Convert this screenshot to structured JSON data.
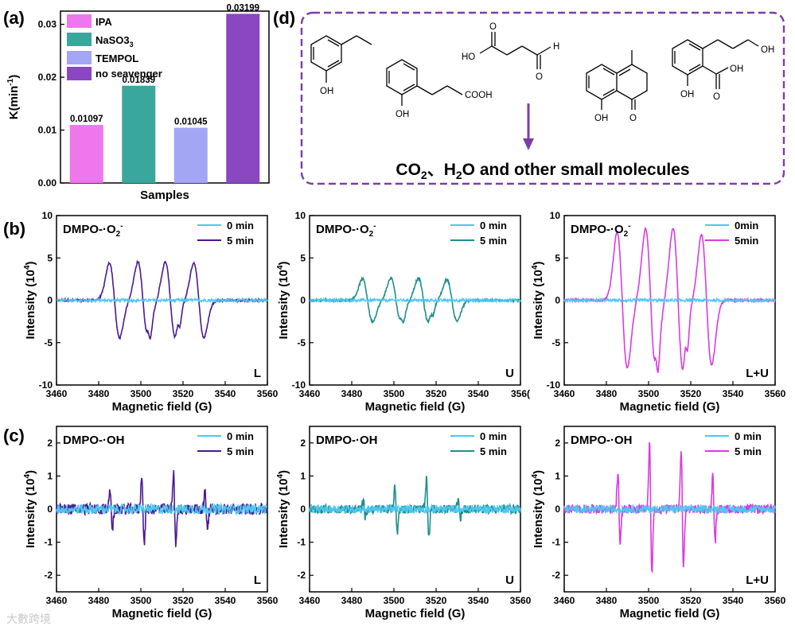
{
  "panel_labels": {
    "a": "(a)",
    "b": "(b)",
    "c": "(c)",
    "d": "(d)"
  },
  "colors": {
    "IPA": "#ee77ee",
    "NaSO3": "#3aa79c",
    "TEMPOL": "#a3a6f4",
    "no_scavenger": "#8a47c1",
    "zero_min": "#4fc7f0",
    "L_5min": "#4b1a8f",
    "U_5min": "#1f8e8e",
    "LU_5min": "#d93be0",
    "box_border": "#7b3ea6",
    "arrow": "#7b3ea6"
  },
  "chart_data": [
    {
      "id": "a",
      "type": "bar",
      "categories": [
        "IPA",
        "NaSO3",
        "TEMPOL",
        "no seavenger"
      ],
      "legend_sub": {
        "NaSO3": "3"
      },
      "values": [
        0.01097,
        0.01839,
        0.01045,
        0.03199
      ],
      "data_labels": [
        "0.01097",
        "0.01839",
        "0.01045",
        "0.03199"
      ],
      "xlabel": "Samples",
      "ylabel": "K(min",
      "ylabel_sup": "-1",
      "ylabel_close": ")",
      "ylim": [
        0,
        0.0325
      ],
      "yticks": [
        "0.00",
        "0.01",
        "0.02",
        "0.03"
      ],
      "legend_position": "top-left"
    },
    {
      "id": "b1",
      "type": "line",
      "title": "DMPO-·O",
      "title_sub": "2",
      "title_sup": "-",
      "corner": "L",
      "series": [
        {
          "name": "0 min"
        },
        {
          "name": "5 min"
        }
      ],
      "ylim": [
        -10,
        10
      ],
      "yticks": [
        "-10",
        "-5",
        "0",
        "5",
        "10"
      ],
      "xlim": [
        3460,
        3560
      ],
      "xticks": [
        "3460",
        "3480",
        "3500",
        "3520",
        "3540",
        "3560"
      ],
      "xlabel": "Magnetic field (G)",
      "ylabel": "Intensity (10",
      "ylabel_sup": "4",
      "ylabel_close": ")",
      "peaks": [
        3487.5,
        3501,
        3514,
        3527.5
      ],
      "amplitudes": [
        4.9,
        5.0,
        5.0,
        4.9
      ],
      "small_peaks": [
        3504,
        3518
      ]
    },
    {
      "id": "b2",
      "type": "line",
      "title": "DMPO-·O",
      "title_sub": "2",
      "title_sup": "-",
      "corner": "U",
      "series": [
        {
          "name": "0 min"
        },
        {
          "name": "5 min"
        }
      ],
      "ylim": [
        -10,
        10
      ],
      "yticks": [
        "-10",
        "-5",
        "0",
        "5",
        "10"
      ],
      "xlim": [
        3460,
        3560
      ],
      "xticks": [
        "3460",
        "3480",
        "3500",
        "3520",
        "3540",
        "356("
      ],
      "xlabel": "Magnetic field (G)",
      "ylabel": "Intensity (10",
      "ylabel_sup": "4",
      "ylabel_close": ")",
      "peaks": [
        3487.5,
        3501,
        3514,
        3527.5
      ],
      "amplitudes": [
        2.8,
        2.9,
        2.9,
        2.7
      ],
      "small_peaks": [
        3504,
        3518
      ]
    },
    {
      "id": "b3",
      "type": "line",
      "title": "DMPO-·O",
      "title_sub": "2",
      "title_sup": "-",
      "corner": "L+U",
      "series": [
        {
          "name": "0min"
        },
        {
          "name": "5min"
        }
      ],
      "ylim": [
        -10,
        10
      ],
      "yticks": [
        "-10",
        "-5",
        "0",
        "5",
        "10"
      ],
      "xlim": [
        3460,
        3560
      ],
      "xticks": [
        "3460",
        "3480",
        "3500",
        "3520",
        "3540",
        "3560"
      ],
      "xlabel": "Magnetic field (G)",
      "ylabel": "Intensity (10",
      "ylabel_sup": "4",
      "ylabel_close": ")",
      "peaks": [
        3487.5,
        3501,
        3514,
        3527.5
      ],
      "amplitudes": [
        8.9,
        9.4,
        9.4,
        8.5
      ],
      "small_peaks": [
        3504,
        3518
      ]
    },
    {
      "id": "c1",
      "type": "line",
      "title": "DMPO-·OH",
      "corner": "L",
      "series": [
        {
          "name": "0 min"
        },
        {
          "name": "5 min"
        }
      ],
      "ylim": [
        -2.5,
        2.5
      ],
      "yticks": [
        "-2",
        "-1",
        "0",
        "1",
        "2"
      ],
      "xlim": [
        3460,
        3560
      ],
      "xticks": [
        "3460",
        "3480",
        "3500",
        "3520",
        "3540",
        "3560"
      ],
      "xlabel": "Magnetic field (G)",
      "ylabel": "Intensity (10",
      "ylabel_sup": "4",
      "ylabel_close": ")",
      "peaks": [
        3486,
        3501,
        3516,
        3531
      ],
      "amplitudes": [
        0.6,
        1.1,
        1.1,
        0.55
      ],
      "noise": 0.15
    },
    {
      "id": "c2",
      "type": "line",
      "title": "DMPO-·OH",
      "corner": "U",
      "series": [
        {
          "name": "0 min"
        },
        {
          "name": "5 min"
        }
      ],
      "ylim": [
        -2.5,
        2.5
      ],
      "yticks": [
        "-2",
        "-1",
        "0",
        "1",
        "2"
      ],
      "xlim": [
        3460,
        3560
      ],
      "xticks": [
        "3460",
        "3480",
        "3500",
        "3520",
        "3540",
        "3560"
      ],
      "xlabel": "Magnetic field (G)",
      "ylabel": "Intensity (10",
      "ylabel_sup": "4",
      "ylabel_close": ")",
      "peaks": [
        3486,
        3501,
        3516,
        3531
      ],
      "amplitudes": [
        0.25,
        0.75,
        0.9,
        0.25
      ],
      "noise": 0.12
    },
    {
      "id": "c3",
      "type": "line",
      "title": "DMPO-·OH",
      "corner": "L+U",
      "series": [
        {
          "name": "0 min"
        },
        {
          "name": "5 min"
        }
      ],
      "ylim": [
        -2.5,
        2.5
      ],
      "yticks": [
        "-2",
        "-1",
        "0",
        "1",
        "2"
      ],
      "xlim": [
        3460,
        3560
      ],
      "xticks": [
        "3460",
        "3480",
        "3500",
        "3520",
        "3540",
        "3560"
      ],
      "xlabel": "Magnetic field (G)",
      "ylabel": "Intensity (10",
      "ylabel_sup": "4",
      "ylabel_close": ")",
      "peaks": [
        3486,
        3501,
        3516,
        3531
      ],
      "amplitudes": [
        1.1,
        2.0,
        1.8,
        1.0
      ],
      "noise": 0.12
    }
  ],
  "panel_d": {
    "atom_labels": {
      "OH": "OH",
      "HO": "HO",
      "O": "O",
      "H": "H",
      "COOH": "COOH"
    },
    "products_text": "CO",
    "products_sub": "2",
    "products_mid": "、H",
    "products_sub2": "2",
    "products_tail": "O and other small molecules"
  },
  "watermark": "大數跨境"
}
